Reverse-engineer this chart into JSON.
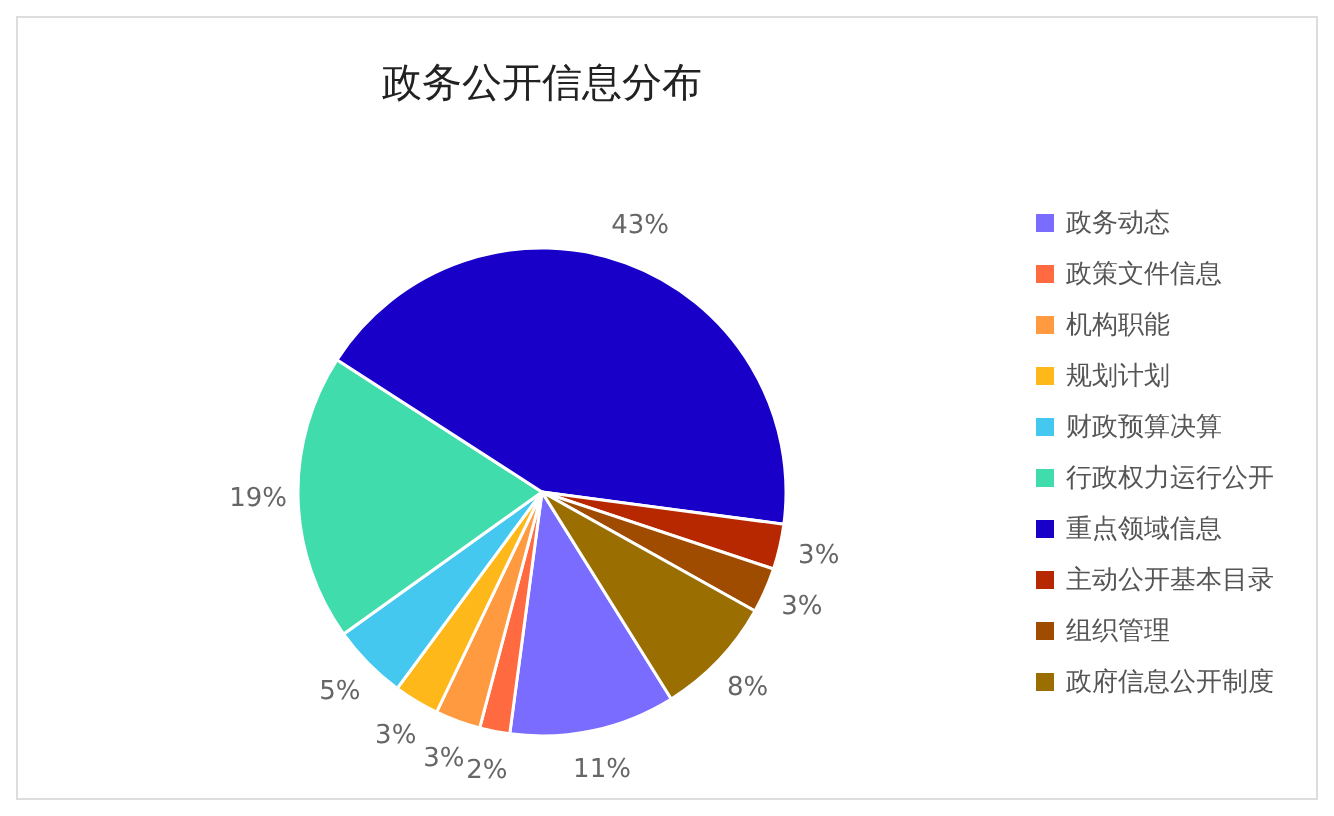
{
  "chart_data": {
    "type": "pie",
    "title": "政务公开信息分布",
    "categories": [
      "政务动态",
      "政策文件信息",
      "机构职能",
      "规划计划",
      "财政预算决算",
      "行政权力运行公开",
      "重点领域信息",
      "主动公开基本目录",
      "组织管理",
      "政府信息公开制度"
    ],
    "values": [
      11,
      2,
      3,
      3,
      5,
      19,
      43,
      3,
      3,
      8
    ],
    "colors": [
      "#7a6cff",
      "#ff6a40",
      "#ff9a40",
      "#ffb81a",
      "#45c8f0",
      "#40dcac",
      "#1800c8",
      "#b82800",
      "#a04c00",
      "#9a6e00"
    ],
    "value_labels": [
      "11%",
      "2%",
      "3%",
      "3%",
      "5%",
      "19%",
      "43%",
      "3%",
      "3%",
      "8%"
    ],
    "legend": "right"
  }
}
